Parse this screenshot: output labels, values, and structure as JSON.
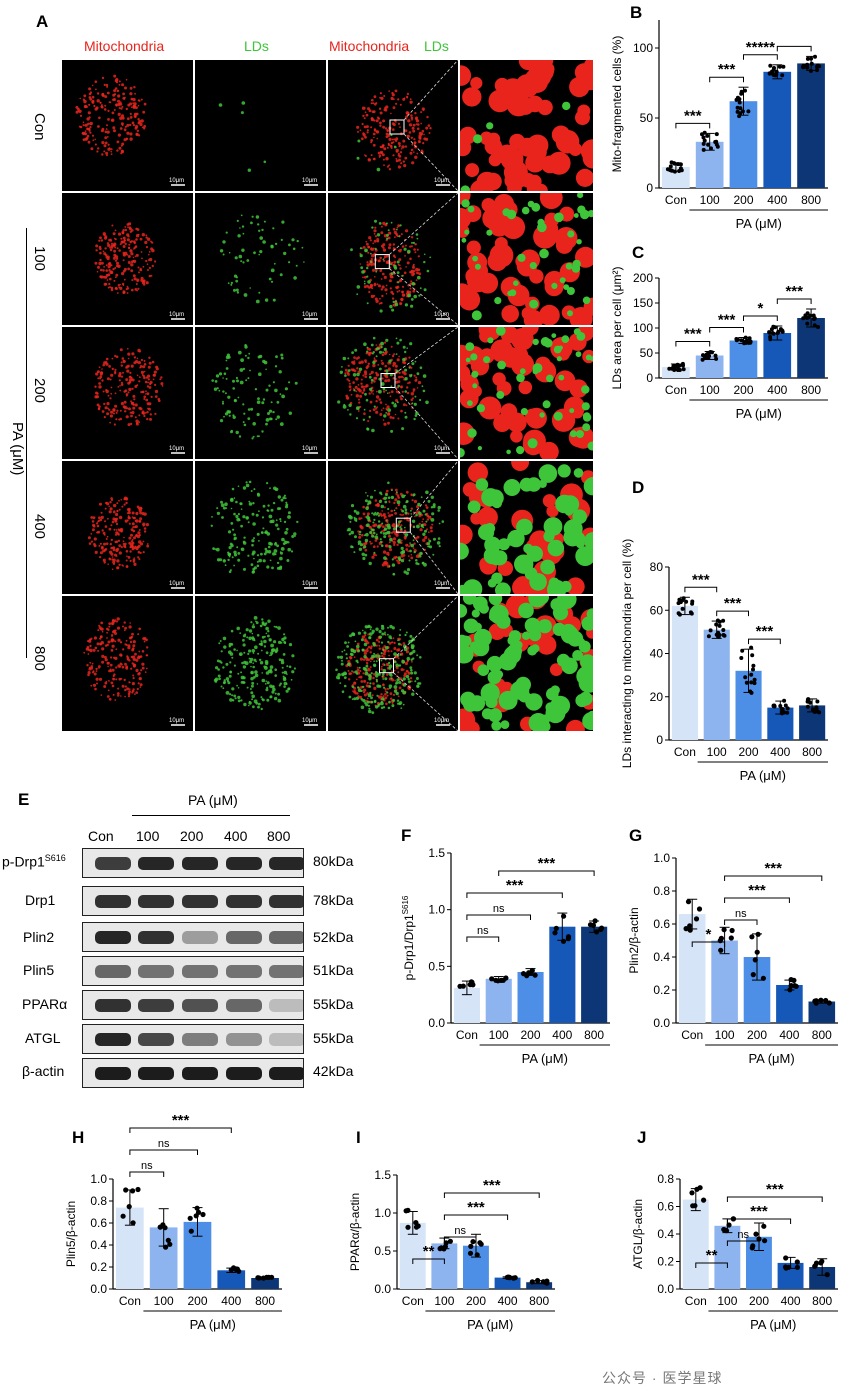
{
  "panel_a": {
    "letter": "A",
    "col_headers": {
      "mito": "Mitochondria",
      "lds": "LDs",
      "merge_mito": "Mitochondria",
      "merge_lds": "LDs"
    },
    "rows": [
      "Con",
      "100",
      "200",
      "400",
      "800"
    ],
    "group_label": "PA (μM)",
    "scale_bar": "10μm",
    "colors": {
      "mito": "#e8241d",
      "lds": "#3fc53a"
    }
  },
  "panel_e": {
    "letter": "E",
    "group_label": "PA (μM)",
    "lanes": [
      "Con",
      "100",
      "200",
      "400",
      "800"
    ],
    "proteins": [
      "p-Drp1",
      "Drp1",
      "Plin2",
      "Plin5",
      "PPARα",
      "ATGL",
      "β-actin"
    ],
    "protein_sup": "S616",
    "sizes": [
      "80kDa",
      "78kDa",
      "52kDa",
      "51kDa",
      "55kDa",
      "55kDa",
      "42kDa"
    ]
  },
  "palette": [
    "#d6e4f8",
    "#8db4ee",
    "#4d8fe6",
    "#1558b8",
    "#0c3675"
  ],
  "chart_data": [
    {
      "id": "B",
      "type": "bar",
      "categories": [
        "Con",
        "100",
        "200",
        "400",
        "800"
      ],
      "values": [
        15,
        33,
        62,
        83,
        89
      ],
      "errors": [
        3,
        6,
        10,
        5,
        5
      ],
      "ylabel": "Mito-fragmented cells (%)",
      "ylim": [
        0,
        120
      ],
      "yticks": [
        0,
        50,
        100
      ],
      "group_label": "PA (μM)",
      "comparisons": [
        {
          "from": 0,
          "to": 1,
          "label": "***"
        },
        {
          "from": 1,
          "to": 2,
          "label": "***"
        },
        {
          "from": 2,
          "to": 3,
          "label": "*****"
        },
        {
          "from": 3,
          "to": 4,
          "label": ""
        }
      ]
    },
    {
      "id": "C",
      "type": "bar",
      "categories": [
        "Con",
        "100",
        "200",
        "400",
        "800"
      ],
      "values": [
        22,
        45,
        75,
        90,
        120
      ],
      "errors": [
        6,
        8,
        6,
        14,
        18
      ],
      "ylabel": "LDs area per cell (μm²)",
      "ylim": [
        0,
        200
      ],
      "yticks": [
        0,
        50,
        100,
        150,
        200
      ],
      "group_label": "PA (μM)",
      "comparisons": [
        {
          "from": 0,
          "to": 1,
          "label": "***"
        },
        {
          "from": 1,
          "to": 2,
          "label": "***"
        },
        {
          "from": 2,
          "to": 3,
          "label": "*"
        },
        {
          "from": 3,
          "to": 4,
          "label": "***"
        }
      ]
    },
    {
      "id": "D",
      "type": "bar",
      "categories": [
        "Con",
        "100",
        "200",
        "400",
        "800"
      ],
      "values": [
        62,
        51,
        32,
        15,
        16
      ],
      "errors": [
        4,
        4,
        10,
        3,
        3
      ],
      "ylabel": "LDs interacting to mitochondria per cell (%)",
      "ylim": [
        0,
        80
      ],
      "yticks": [
        0,
        20,
        40,
        60,
        80
      ],
      "group_label": "PA (μM)",
      "comparisons": [
        {
          "from": 0,
          "to": 1,
          "label": "***"
        },
        {
          "from": 1,
          "to": 2,
          "label": "***"
        },
        {
          "from": 2,
          "to": 3,
          "label": "***"
        }
      ]
    },
    {
      "id": "F",
      "type": "bar",
      "categories": [
        "Con",
        "100",
        "200",
        "400",
        "800"
      ],
      "values": [
        0.31,
        0.39,
        0.45,
        0.85,
        0.85
      ],
      "errors": [
        0.06,
        0.02,
        0.03,
        0.12,
        0.05
      ],
      "ylabel": "p-Drp1/Drp1",
      "ylabel_sup": "S616",
      "ylim": [
        0,
        1.5
      ],
      "yticks": [
        0.0,
        0.5,
        1.0,
        1.5
      ],
      "group_label": "PA (μM)",
      "comparisons": [
        {
          "from": 0,
          "to": 1,
          "label": "ns"
        },
        {
          "from": 0,
          "to": 2,
          "label": "ns"
        },
        {
          "from": 0,
          "to": 3,
          "label": "***"
        },
        {
          "from": 1,
          "to": 4,
          "label": "***"
        }
      ]
    },
    {
      "id": "G",
      "type": "bar",
      "categories": [
        "Con",
        "100",
        "200",
        "400",
        "800"
      ],
      "values": [
        0.66,
        0.5,
        0.4,
        0.23,
        0.13
      ],
      "errors": [
        0.09,
        0.08,
        0.14,
        0.03,
        0.01
      ],
      "ylabel": "Plin2/β-actin",
      "ylim": [
        0,
        1.0
      ],
      "yticks": [
        0.0,
        0.2,
        0.4,
        0.6,
        0.8,
        1.0
      ],
      "group_label": "PA (μM)",
      "comparisons": [
        {
          "from": 0,
          "to": 1,
          "label": "*"
        },
        {
          "from": 1,
          "to": 2,
          "label": "ns"
        },
        {
          "from": 1,
          "to": 3,
          "label": "***"
        },
        {
          "from": 1,
          "to": 4,
          "label": "***"
        }
      ]
    },
    {
      "id": "H",
      "type": "bar",
      "categories": [
        "Con",
        "100",
        "200",
        "400",
        "800"
      ],
      "values": [
        0.74,
        0.56,
        0.61,
        0.17,
        0.1
      ],
      "errors": [
        0.16,
        0.17,
        0.13,
        0.02,
        0.01
      ],
      "ylabel": "Plin5/β-actin",
      "ylim": [
        0,
        1.0
      ],
      "yticks": [
        0.0,
        0.2,
        0.4,
        0.6,
        0.8,
        1.0
      ],
      "group_label": "PA (μM)",
      "comparisons": [
        {
          "from": 0,
          "to": 1,
          "label": "ns"
        },
        {
          "from": 0,
          "to": 2,
          "label": "ns"
        },
        {
          "from": 0,
          "to": 3,
          "label": "***"
        }
      ]
    },
    {
      "id": "I",
      "type": "bar",
      "categories": [
        "Con",
        "100",
        "200",
        "400",
        "800"
      ],
      "values": [
        0.87,
        0.6,
        0.57,
        0.15,
        0.09
      ],
      "errors": [
        0.15,
        0.07,
        0.15,
        0.01,
        0.02
      ],
      "ylabel": "PPARα/β-actin",
      "ylim": [
        0,
        1.5
      ],
      "yticks": [
        0.0,
        0.5,
        1.0,
        1.5
      ],
      "group_label": "PA (μM)",
      "comparisons": [
        {
          "from": 0,
          "to": 1,
          "label": "**"
        },
        {
          "from": 1,
          "to": 2,
          "label": "ns"
        },
        {
          "from": 1,
          "to": 3,
          "label": "***"
        },
        {
          "from": 1,
          "to": 4,
          "label": "***"
        }
      ]
    },
    {
      "id": "J",
      "type": "bar",
      "categories": [
        "Con",
        "100",
        "200",
        "400",
        "800"
      ],
      "values": [
        0.65,
        0.46,
        0.38,
        0.19,
        0.16
      ],
      "errors": [
        0.08,
        0.05,
        0.1,
        0.04,
        0.06
      ],
      "ylabel": "ATGL/β-actin",
      "ylim": [
        0,
        0.8
      ],
      "yticks": [
        0.0,
        0.2,
        0.4,
        0.6,
        0.8
      ],
      "group_label": "PA (μM)",
      "comparisons": [
        {
          "from": 0,
          "to": 1,
          "label": "**"
        },
        {
          "from": 1,
          "to": 2,
          "label": "ns"
        },
        {
          "from": 1,
          "to": 3,
          "label": "***"
        },
        {
          "from": 1,
          "to": 4,
          "label": "***"
        }
      ]
    }
  ],
  "watermark": "公众号 · 医学星球"
}
